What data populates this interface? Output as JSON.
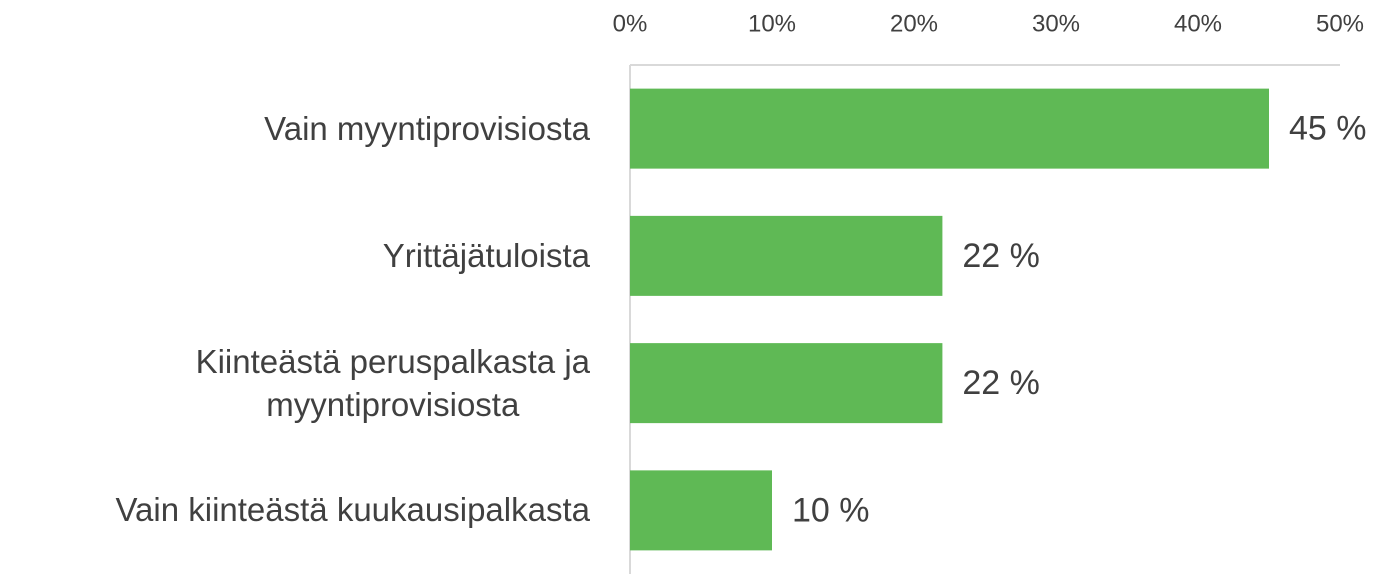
{
  "chart_data": {
    "type": "bar",
    "orientation": "horizontal",
    "categories": [
      "Vain myyntiprovisiosta",
      "Yrittäjätuloista",
      "Kiinteästä peruspalkasta ja\nmyyntiprovisiosta",
      "Vain kiinteästä kuukausipalkasta"
    ],
    "values": [
      45,
      22,
      22,
      10
    ],
    "value_labels": [
      "45 %",
      "22 %",
      "22 %",
      "10 %"
    ],
    "color": "#5fb955",
    "xlim": [
      0,
      50
    ],
    "xticks": [
      {
        "value": 0,
        "label": "0%"
      },
      {
        "value": 10,
        "label": "10%"
      },
      {
        "value": 20,
        "label": "20%"
      },
      {
        "value": 30,
        "label": "30%"
      },
      {
        "value": 40,
        "label": "40%"
      },
      {
        "value": 50,
        "label": "50%"
      }
    ]
  }
}
